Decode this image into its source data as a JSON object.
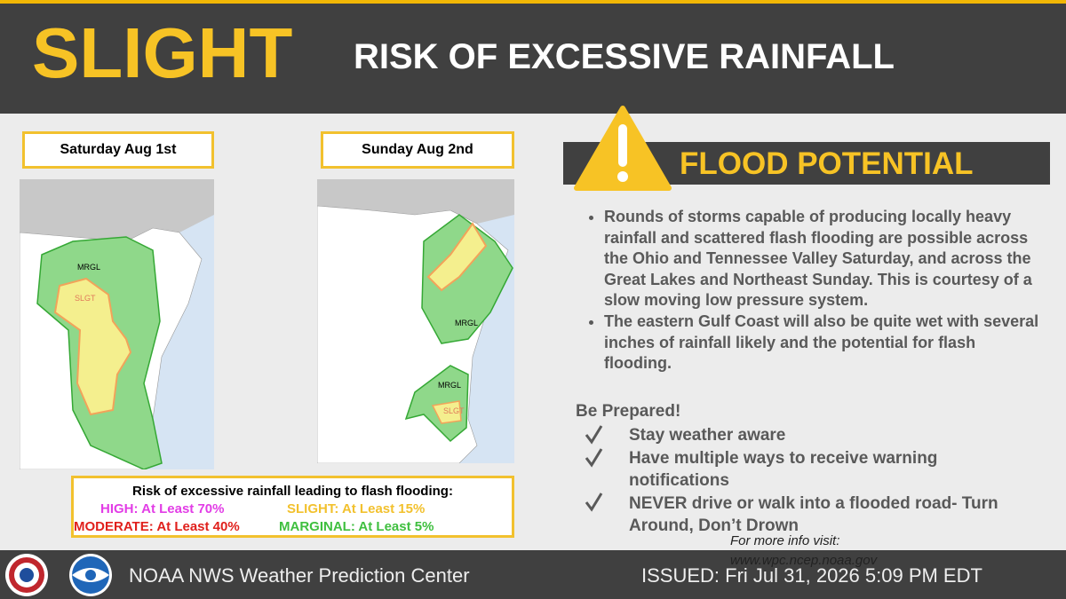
{
  "header": {
    "level": "SLIGHT",
    "title": "RISK OF EXCESSIVE RAINFALL"
  },
  "maps": [
    {
      "label": "Saturday Aug 1st",
      "areas": [
        "MRGL",
        "SLGT"
      ]
    },
    {
      "label": "Sunday Aug 2nd",
      "areas": [
        "MRGL",
        "MRGL",
        "SLGT"
      ]
    }
  ],
  "legend": {
    "title": "Risk of excessive rainfall leading to flash flooding:",
    "items": [
      {
        "label": "HIGH: At Least 70%",
        "color": "#e23de6"
      },
      {
        "label": "SLIGHT: At Least 15%",
        "color": "#f2c12e"
      },
      {
        "label": "MODERATE: At Least 40%",
        "color": "#e0201c"
      },
      {
        "label": "MARGINAL: At Least 5%",
        "color": "#3fbf3f"
      }
    ]
  },
  "flood": {
    "title": "FLOOD POTENTIAL",
    "bullets": [
      "Rounds of storms capable of producing locally heavy rainfall and scattered flash flooding are possible across the Ohio and Tennessee Valley Saturday, and across the Great Lakes and Northeast Sunday. This is courtesy of a slow moving low pressure system.",
      "The eastern Gulf Coast will also be quite wet with several inches of rainfall likely and the potential for flash flooding."
    ],
    "prepared": "Be Prepared!",
    "checklist": [
      "Stay weather aware",
      "Have multiple ways to receive warning notifications",
      "NEVER drive or walk into a flooded road- Turn Around, Don’t Drown"
    ],
    "more_info": "For more info visit:",
    "url": "www.wpc.ncep.noaa.gov"
  },
  "footer": {
    "office": "NOAA NWS Weather Prediction Center",
    "issued": "ISSUED:  Fri Jul 31, 2026 5:09 PM EDT"
  }
}
